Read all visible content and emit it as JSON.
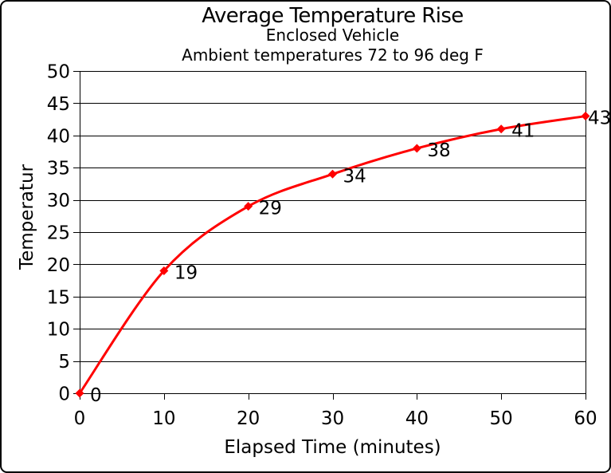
{
  "window": {
    "background": "#ffffff",
    "border_color": "#000000"
  },
  "chart_data": {
    "type": "line",
    "title": "Average Temperature Rise",
    "subtitle1": "Enclosed Vehicle",
    "subtitle2": "Ambient temperatures 72 to 96 deg F",
    "xlabel": "Elapsed Time (minutes)",
    "ylabel": "Temperatur",
    "x": [
      0,
      10,
      20,
      30,
      40,
      50,
      60
    ],
    "values": [
      0,
      19,
      29,
      34,
      38,
      41,
      43
    ],
    "data_labels": [
      "0",
      "19",
      "29",
      "34",
      "38",
      "41",
      "43"
    ],
    "x_ticks": [
      0,
      10,
      20,
      30,
      40,
      50,
      60
    ],
    "y_ticks": [
      0,
      5,
      10,
      15,
      20,
      25,
      30,
      35,
      40,
      45,
      50
    ],
    "xlim": [
      0,
      60
    ],
    "ylim": [
      0,
      50
    ],
    "grid": "horizontal-only",
    "smoothed_line": true,
    "marker": "diamond",
    "line_color": "#ff0000",
    "grid_color": "#000000",
    "text_color": "#000000",
    "legend": "none"
  }
}
